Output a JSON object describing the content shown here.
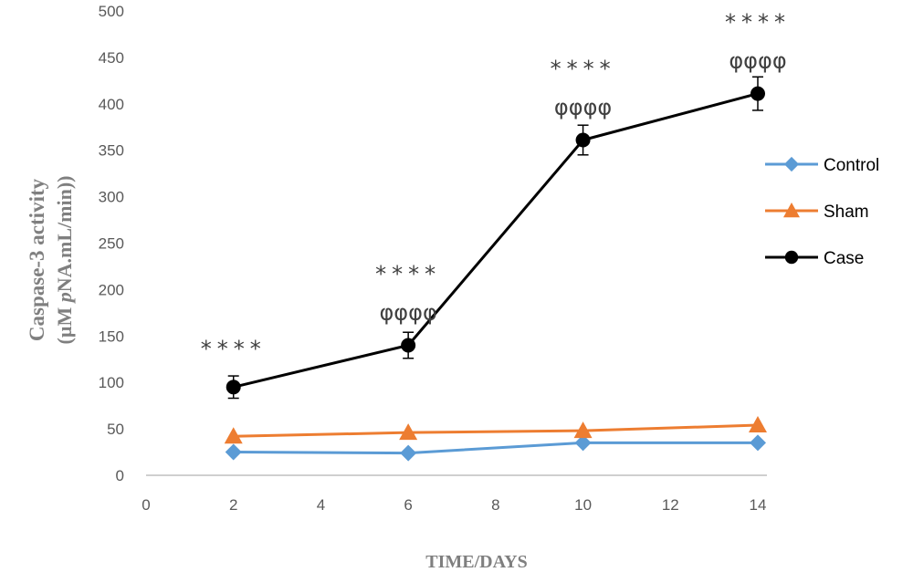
{
  "chart_data": {
    "type": "line",
    "title": "",
    "xlabel": "TIME/DAYS",
    "ylabel_line1": "Caspase-3 activity",
    "ylabel_line2_pre": "(µM ",
    "ylabel_line2_italic": "p",
    "ylabel_line2_post": "NA.mL/min))",
    "xlim": [
      0,
      14
    ],
    "ylim": [
      0,
      500
    ],
    "xticks": [
      0,
      2,
      4,
      6,
      8,
      10,
      12,
      14
    ],
    "yticks": [
      0,
      50,
      100,
      150,
      200,
      250,
      300,
      350,
      400,
      450,
      500
    ],
    "x": [
      2,
      6,
      10,
      14
    ],
    "grid": false,
    "legend_position": "right",
    "series": [
      {
        "name": "Control",
        "values": [
          25,
          24,
          35,
          35
        ],
        "color": "#5b9bd5",
        "marker": "diamond"
      },
      {
        "name": "Sham",
        "values": [
          42,
          46,
          48,
          54
        ],
        "color": "#ed7d31",
        "marker": "triangle"
      },
      {
        "name": "Case",
        "values": [
          95,
          140,
          361,
          411
        ],
        "errors": [
          12,
          14,
          16,
          18
        ],
        "color": "#000000",
        "marker": "circle"
      }
    ],
    "annotations": [
      {
        "x": 2,
        "y": 95,
        "lines": [
          "****"
        ]
      },
      {
        "x": 6,
        "y": 140,
        "lines": [
          "****",
          "φφφφ"
        ]
      },
      {
        "x": 10,
        "y": 361,
        "lines": [
          "****",
          "φφφφ"
        ]
      },
      {
        "x": 14,
        "y": 411,
        "lines": [
          "****",
          "φφφφ"
        ]
      }
    ]
  }
}
